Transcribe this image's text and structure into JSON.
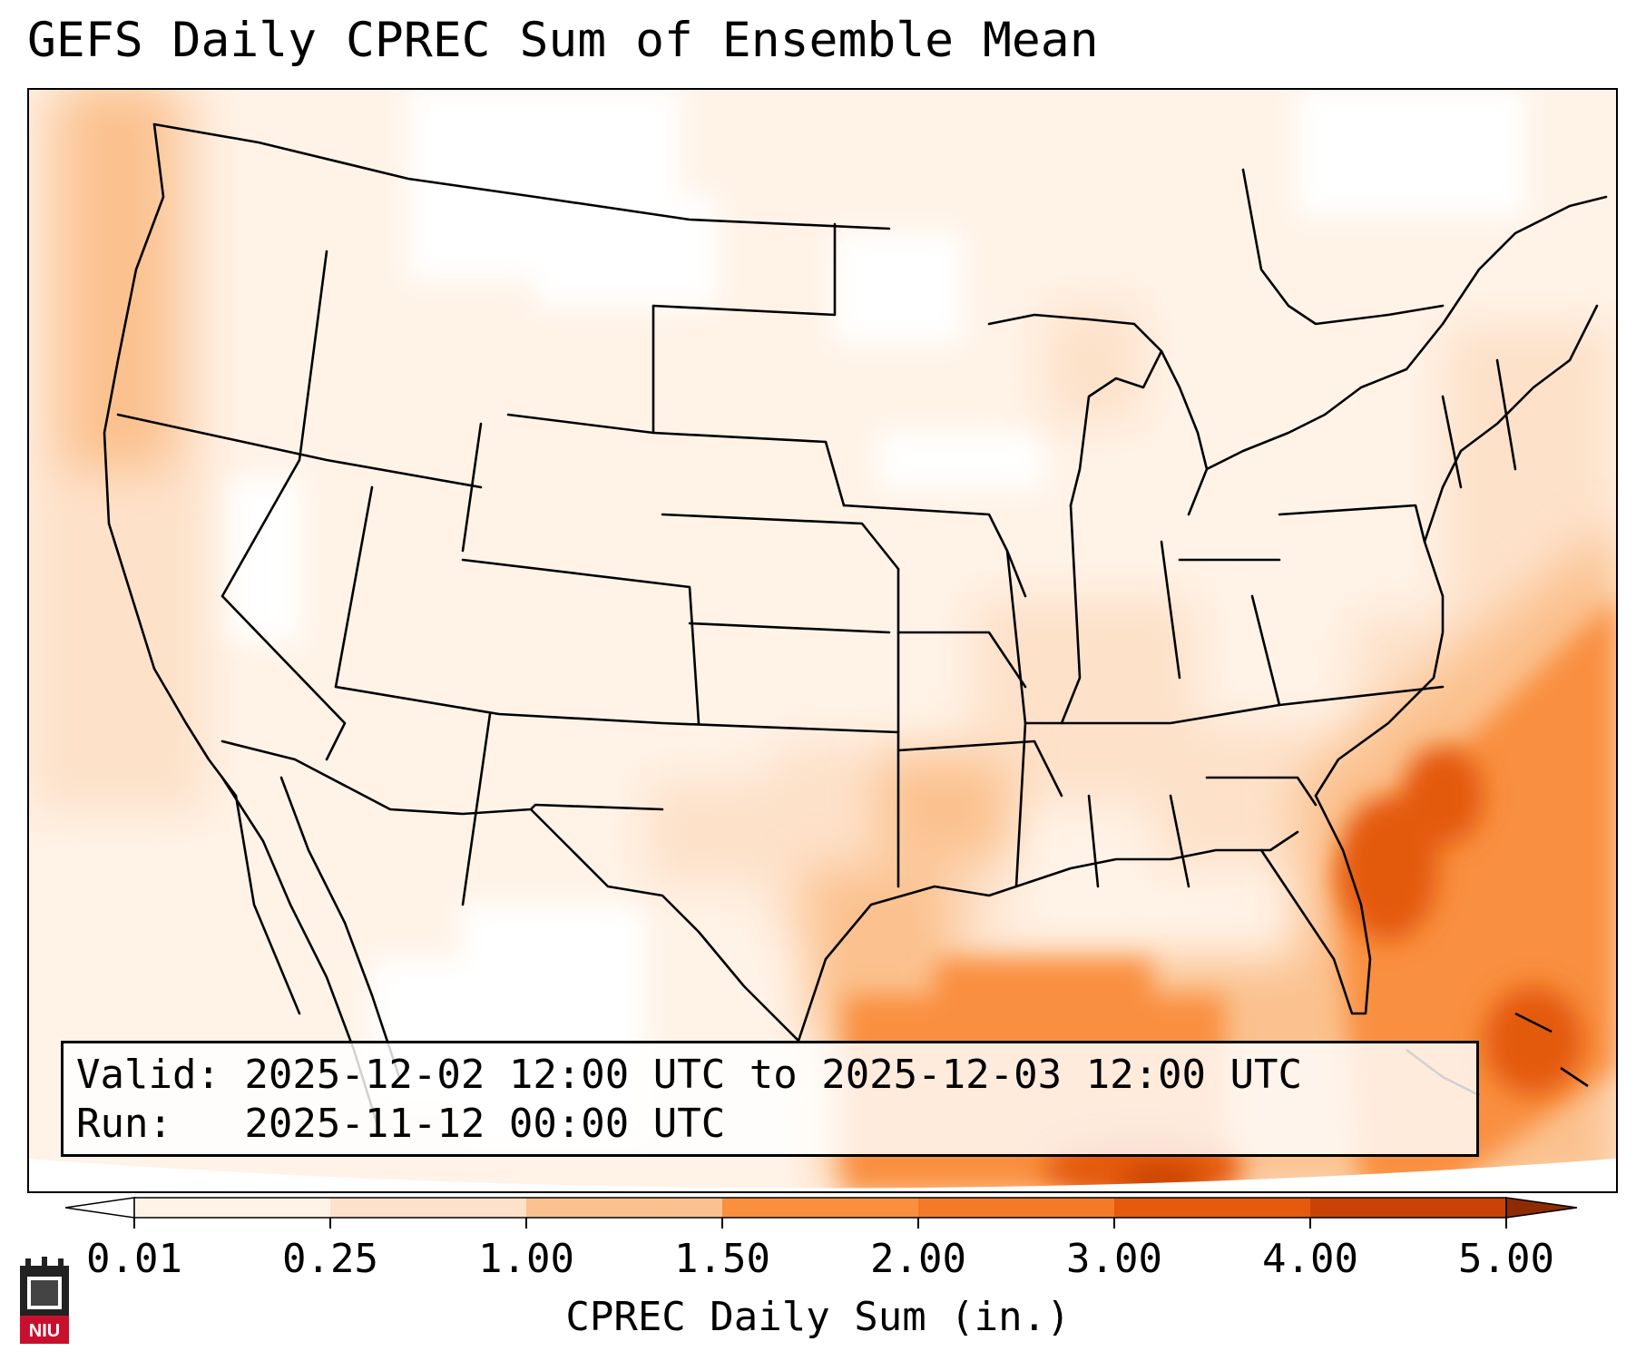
{
  "title": "GEFS Daily CPREC Sum of Ensemble Mean",
  "info": {
    "valid_line": "Valid: 2025-12-02 12:00 UTC to 2025-12-03 12:00 UTC",
    "run_line": "Run:   2025-11-12 00:00 UTC"
  },
  "colorbar": {
    "label": "CPREC Daily Sum (in.)",
    "ticks": [
      "0.01",
      "0.25",
      "1.00",
      "1.50",
      "2.00",
      "3.00",
      "4.00",
      "5.00"
    ],
    "colors": [
      "#ffffff",
      "#fff3e8",
      "#fde1c9",
      "#fbc18e",
      "#f98f3f",
      "#f37a26",
      "#e45a0f",
      "#c94306",
      "#8f2b02"
    ]
  },
  "logo": {
    "text": "NIU"
  }
}
